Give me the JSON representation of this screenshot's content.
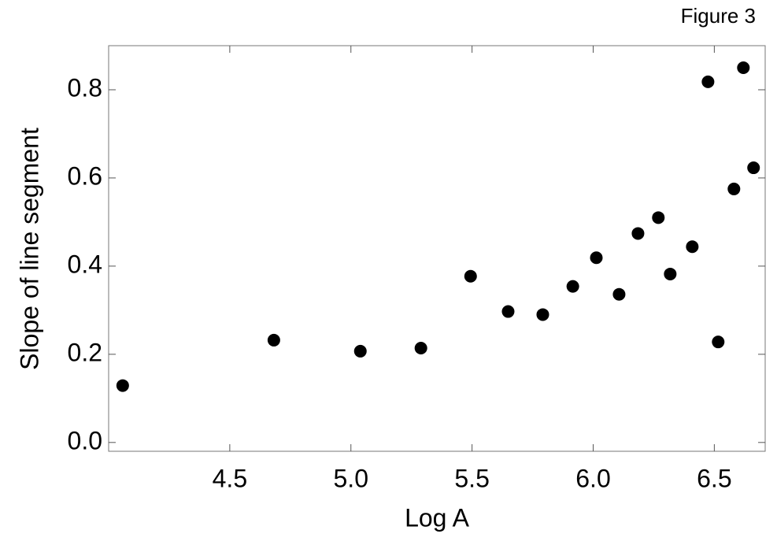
{
  "chart_data": {
    "type": "scatter",
    "annotation": "Figure 3",
    "x_label": "Log A",
    "y_label": "Slope of line segment",
    "color": "#000000",
    "x": [
      4.058,
      4.682,
      5.039,
      5.289,
      5.494,
      5.649,
      5.792,
      5.916,
      6.013,
      6.107,
      6.185,
      6.269,
      6.318,
      6.409,
      6.474,
      6.516,
      6.581,
      6.62,
      6.662
    ],
    "values": [
      0.129,
      0.232,
      0.207,
      0.214,
      0.377,
      0.297,
      0.29,
      0.354,
      0.419,
      0.336,
      0.474,
      0.51,
      0.382,
      0.444,
      0.818,
      0.228,
      0.575,
      0.85,
      0.623
    ],
    "xlim": [
      4.0,
      6.71
    ],
    "ylim": [
      -0.02,
      0.9
    ],
    "xticks": [
      4.5,
      {
        "value": 5.0,
        "label": "5.0"
      },
      5.5,
      {
        "value": 6.0,
        "label": "6.0"
      },
      6.5
    ],
    "yticks": [
      {
        "value": 0,
        "label": "0.0"
      },
      0.2,
      0.4,
      0.6,
      0.8
    ]
  }
}
